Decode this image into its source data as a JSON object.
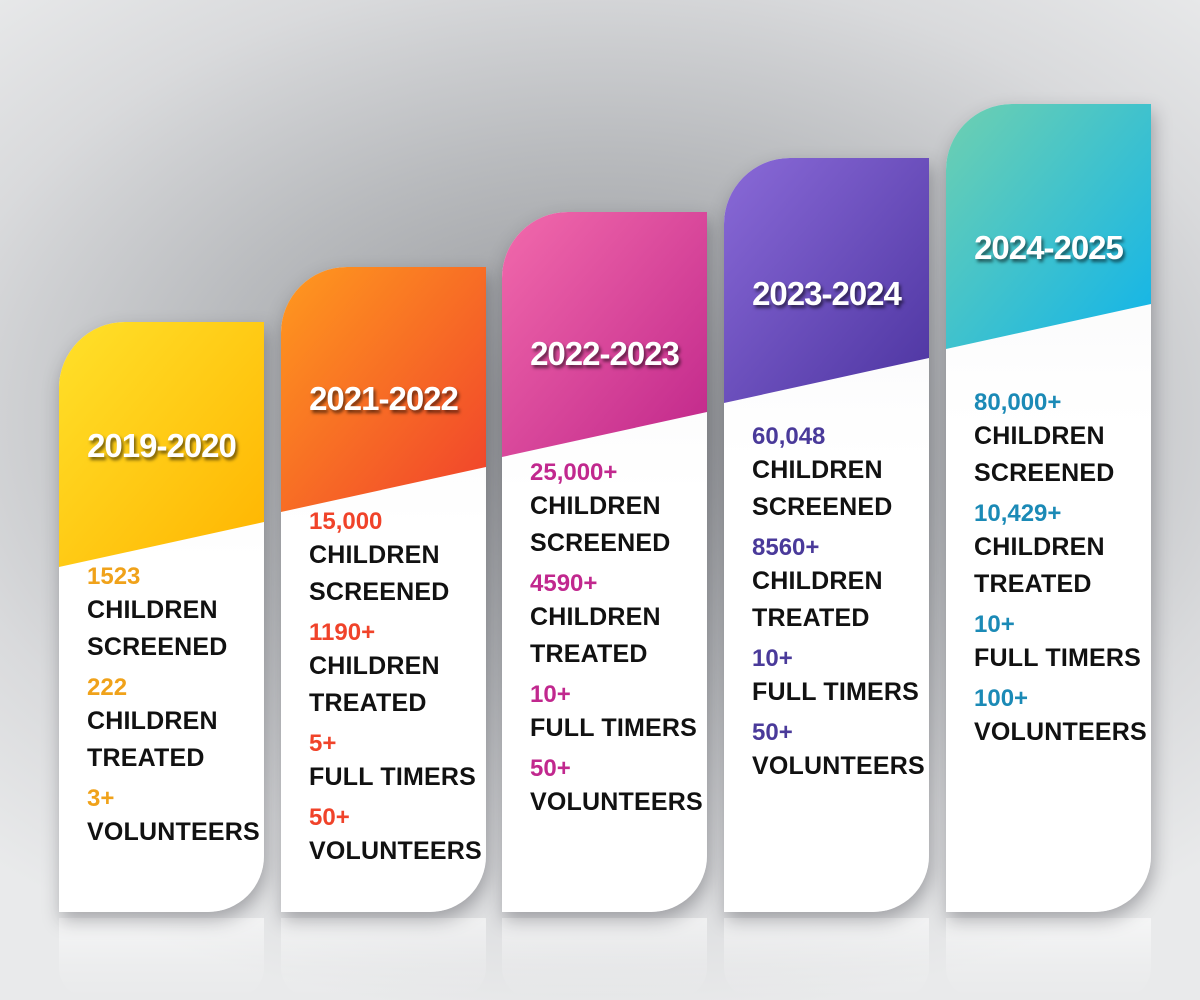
{
  "cards": [
    {
      "year": "2019-2020",
      "num_color": "#f0a21a",
      "colors": [
        "#ffe12a",
        "#ffb400"
      ],
      "stats": [
        {
          "value": "1523",
          "label": "CHILDREN\nSCREENED"
        },
        {
          "value": "222",
          "label": "CHILDREN\nTREATED"
        },
        {
          "value": "3+",
          "label": "VOLUNTEERS"
        }
      ]
    },
    {
      "year": "2021-2022",
      "num_color": "#f0432a",
      "colors": [
        "#ff9a1e",
        "#f0402c"
      ],
      "stats": [
        {
          "value": "15,000",
          "label": "CHILDREN\nSCREENED"
        },
        {
          "value": "1190+",
          "label": "CHILDREN\nTREATED"
        },
        {
          "value": "5+",
          "label": "FULL TIMERS"
        },
        {
          "value": "50+",
          "label": "VOLUNTEERS"
        }
      ]
    },
    {
      "year": "2022-2023",
      "num_color": "#c1288e",
      "colors": [
        "#f26aac",
        "#c0268a"
      ],
      "stats": [
        {
          "value": "25,000+",
          "label": "CHILDREN\nSCREENED"
        },
        {
          "value": "4590+",
          "label": "CHILDREN\nTREATED"
        },
        {
          "value": "10+",
          "label": "FULL TIMERS"
        },
        {
          "value": "50+",
          "label": "VOLUNTEERS"
        }
      ]
    },
    {
      "year": "2023-2024",
      "num_color": "#4a3a9a",
      "colors": [
        "#8a6ad8",
        "#4c34a0"
      ],
      "stats": [
        {
          "value": "60,048",
          "label": "CHILDREN\nSCREENED"
        },
        {
          "value": "8560+",
          "label": "CHILDREN\nTREATED"
        },
        {
          "value": "10+",
          "label": "FULL TIMERS"
        },
        {
          "value": "50+",
          "label": "VOLUNTEERS"
        }
      ]
    },
    {
      "year": "2024-2025",
      "num_color": "#1b8ab6",
      "colors": [
        "#6fd0b0",
        "#10b4ea"
      ],
      "stats": [
        {
          "value": "80,000+",
          "label": "CHILDREN\nSCREENED"
        },
        {
          "value": "10,429+",
          "label": "CHILDREN\nTREATED"
        },
        {
          "value": "10+",
          "label": "FULL TIMERS"
        },
        {
          "value": "100+",
          "label": "VOLUNTEERS"
        }
      ]
    }
  ]
}
